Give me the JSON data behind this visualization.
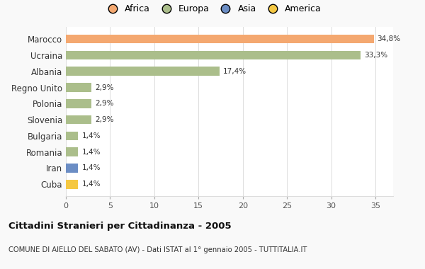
{
  "countries": [
    "Marocco",
    "Ucraina",
    "Albania",
    "Regno Unito",
    "Polonia",
    "Slovenia",
    "Bulgaria",
    "Romania",
    "Iran",
    "Cuba"
  ],
  "values": [
    34.8,
    33.3,
    17.4,
    2.9,
    2.9,
    2.9,
    1.4,
    1.4,
    1.4,
    1.4
  ],
  "labels": [
    "34,8%",
    "33,3%",
    "17,4%",
    "2,9%",
    "2,9%",
    "2,9%",
    "1,4%",
    "1,4%",
    "1,4%",
    "1,4%"
  ],
  "colors": [
    "#F4A870",
    "#ABBE8B",
    "#ABBE8B",
    "#ABBE8B",
    "#ABBE8B",
    "#ABBE8B",
    "#ABBE8B",
    "#ABBE8B",
    "#6B8DC4",
    "#F5C842"
  ],
  "legend_labels": [
    "Africa",
    "Europa",
    "Asia",
    "America"
  ],
  "legend_colors": [
    "#F4A870",
    "#ABBE8B",
    "#6B8DC4",
    "#F5C842"
  ],
  "title": "Cittadini Stranieri per Cittadinanza - 2005",
  "subtitle": "COMUNE DI AIELLO DEL SABATO (AV) - Dati ISTAT al 1° gennaio 2005 - TUTTITALIA.IT",
  "xlim": [
    0,
    37
  ],
  "xticks": [
    0,
    5,
    10,
    15,
    20,
    25,
    30,
    35
  ],
  "background_color": "#f9f9f9",
  "plot_bg": "#ffffff",
  "grid_color": "#dddddd",
  "bar_height": 0.55
}
